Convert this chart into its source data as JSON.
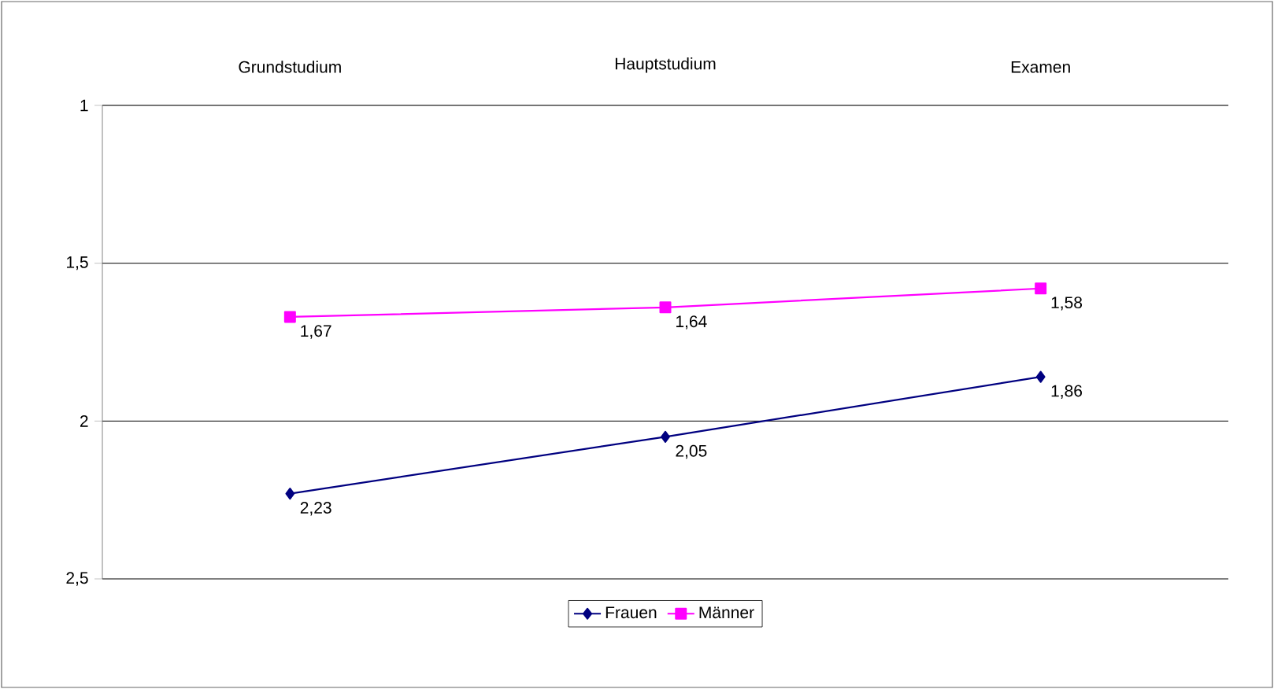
{
  "chart_data": {
    "type": "line",
    "categories": [
      "Grundstudium",
      "Hauptstudium",
      "Examen"
    ],
    "series": [
      {
        "name": "Frauen",
        "color": "#000080",
        "marker": "diamond",
        "values": [
          2.23,
          2.05,
          1.86
        ],
        "value_labels": [
          "2,23",
          "2,05",
          "1,86"
        ]
      },
      {
        "name": "Männer",
        "color": "#ff00ff",
        "marker": "square",
        "values": [
          1.67,
          1.64,
          1.58
        ],
        "value_labels": [
          "1,67",
          "1,64",
          "1,58"
        ]
      }
    ],
    "ylim": [
      2.5,
      1
    ],
    "yticks": [
      1,
      {
        "value": 1.5,
        "label": "1,5"
      },
      2,
      {
        "value": 2.5,
        "label": "2,5"
      }
    ],
    "grid": "y",
    "legend": "bottom"
  }
}
